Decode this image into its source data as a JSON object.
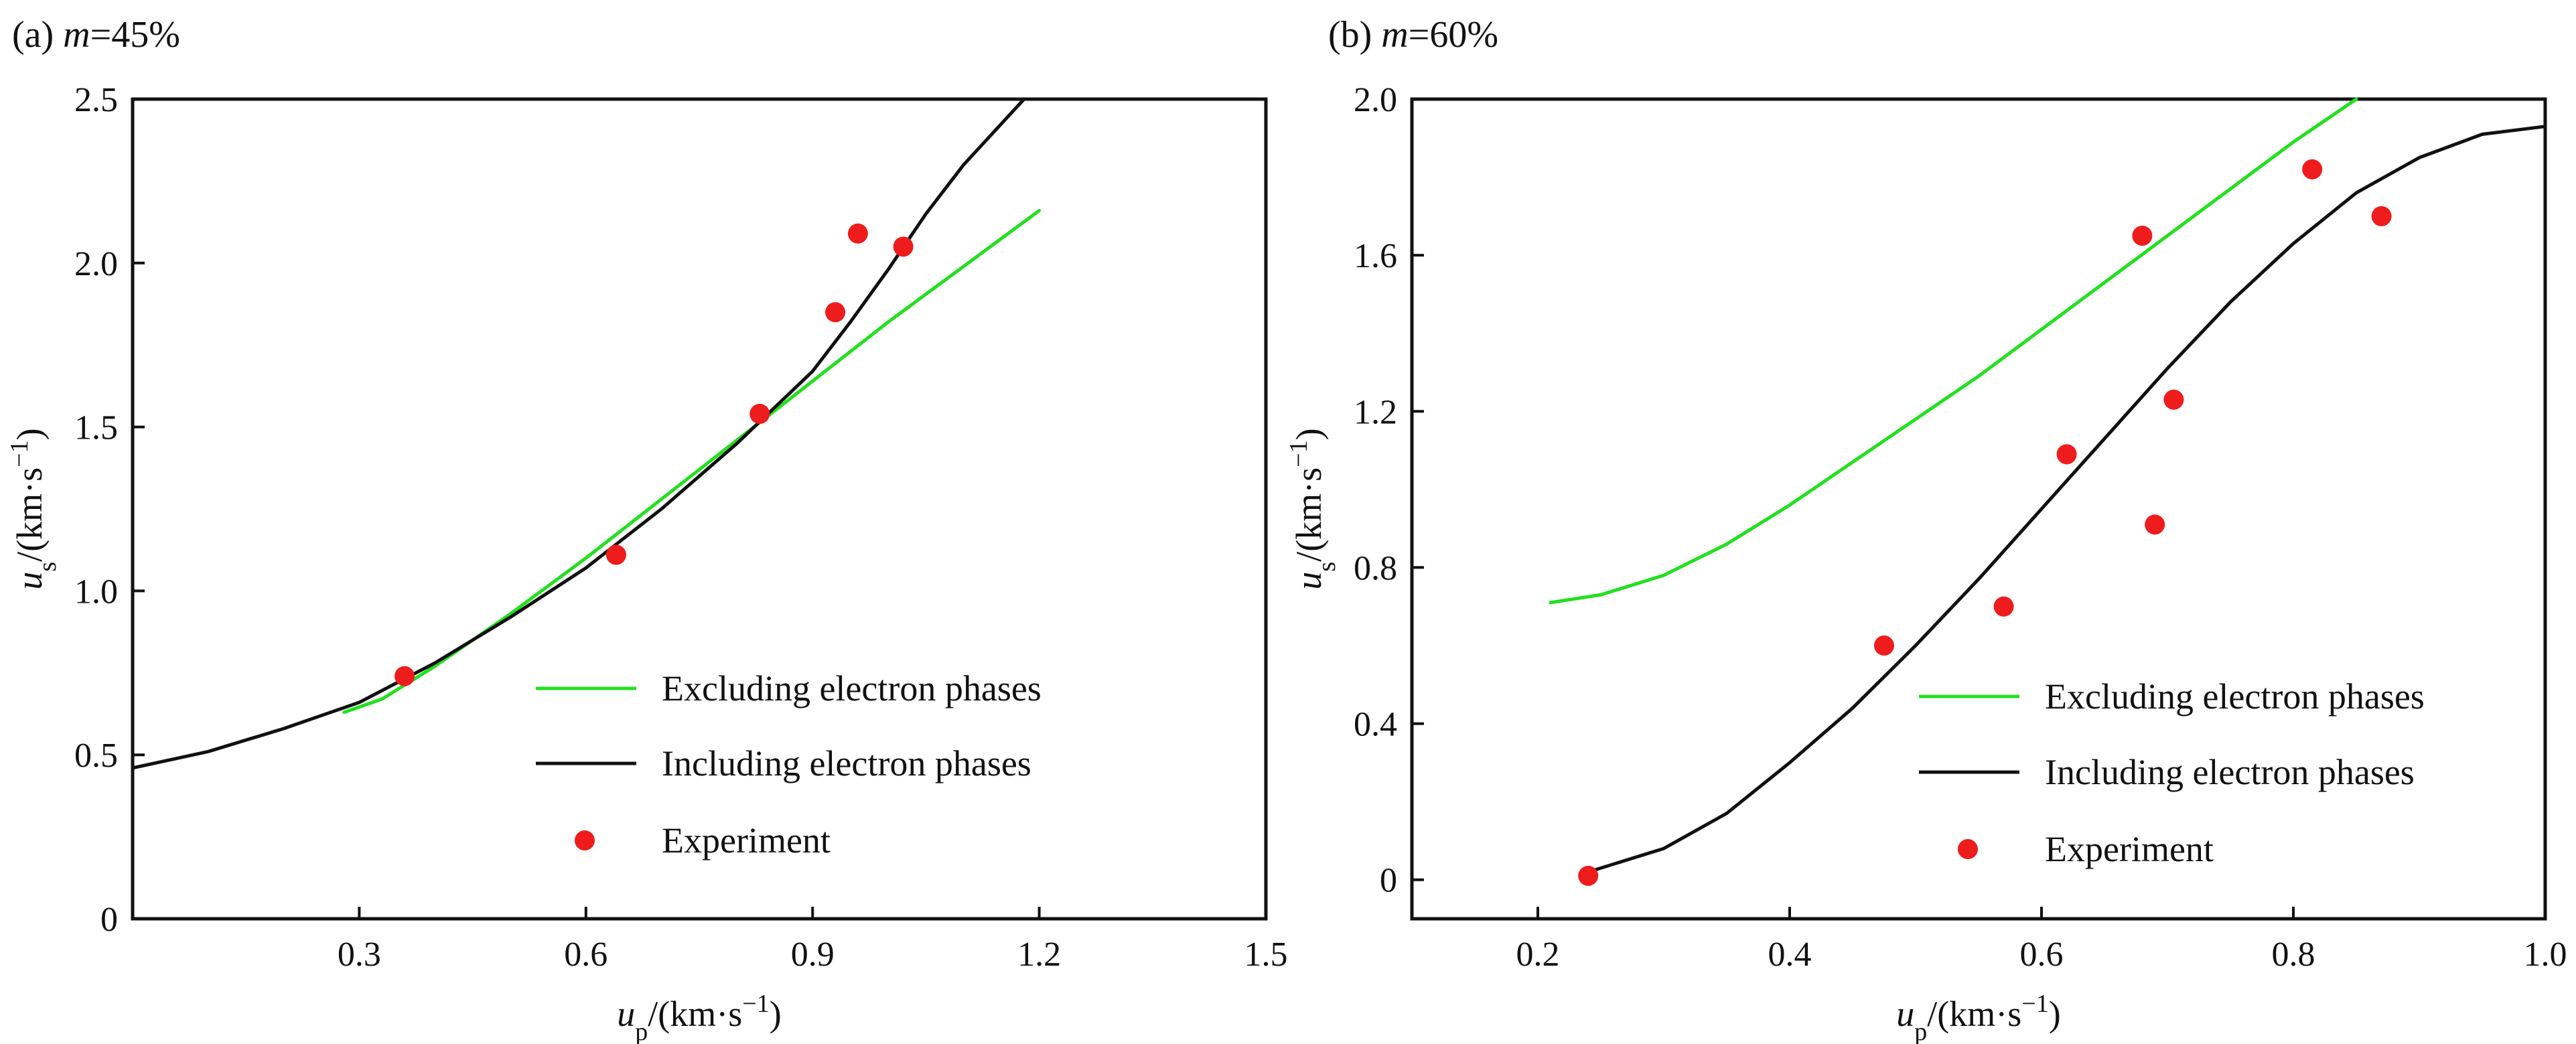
{
  "colors": {
    "excluding": "#22e01e",
    "including": "#111111",
    "experiment": "#ee1c1c"
  },
  "chart_data": [
    {
      "type": "line",
      "panel_title_prefix": "(a)",
      "panel_title_var": "m",
      "panel_title_value": "=45%",
      "xlabel_var": "u",
      "xlabel_sub": "p",
      "xlabel_unit": "/(km·s",
      "xlabel_exp": "−1",
      "xlabel_close": ")",
      "ylabel_var": "u",
      "ylabel_sub": "s",
      "ylabel_unit": "/(km·s",
      "ylabel_exp": "−1",
      "ylabel_close": ")",
      "xlim": [
        0,
        1.5
      ],
      "ylim": [
        0,
        2.5
      ],
      "x_ticks": [
        0.3,
        0.6,
        0.9,
        1.2,
        1.5
      ],
      "x_tick_labels": [
        "0.3",
        "0.6",
        "0.9",
        "1.2",
        "1.5"
      ],
      "y_ticks": [
        0,
        0.5,
        1.0,
        1.5,
        2.0,
        2.5
      ],
      "y_tick_labels": [
        "0",
        "0.5",
        "1.0",
        "1.5",
        "2.0",
        "2.5"
      ],
      "legend_position": "lower-right",
      "series": [
        {
          "name": "Excluding electron phases",
          "kind": "line",
          "color_key": "excluding",
          "x": [
            0.28,
            0.33,
            0.4,
            0.5,
            0.6,
            0.7,
            0.8,
            0.9,
            1.0,
            1.1,
            1.2
          ],
          "y": [
            0.63,
            0.67,
            0.77,
            0.93,
            1.1,
            1.28,
            1.46,
            1.64,
            1.82,
            1.99,
            2.16
          ]
        },
        {
          "name": "Including electron phases",
          "kind": "line",
          "color_key": "including",
          "x": [
            0.0,
            0.1,
            0.2,
            0.3,
            0.4,
            0.5,
            0.6,
            0.7,
            0.8,
            0.9,
            0.95,
            1.0,
            1.05,
            1.1,
            1.18
          ],
          "y": [
            0.46,
            0.51,
            0.58,
            0.66,
            0.78,
            0.92,
            1.07,
            1.25,
            1.45,
            1.67,
            1.82,
            1.98,
            2.15,
            2.3,
            2.5
          ]
        },
        {
          "name": "Experiment",
          "kind": "scatter",
          "color_key": "experiment",
          "x": [
            0.36,
            0.64,
            0.83,
            0.93,
            0.96,
            1.02
          ],
          "y": [
            0.74,
            1.11,
            1.54,
            1.85,
            2.09,
            2.05
          ]
        }
      ]
    },
    {
      "type": "line",
      "panel_title_prefix": "(b)",
      "panel_title_var": "m",
      "panel_title_value": "=60%",
      "xlabel_var": "u",
      "xlabel_sub": "p",
      "xlabel_unit": "/(km·s",
      "xlabel_exp": "−1",
      "xlabel_close": ")",
      "ylabel_var": "u",
      "ylabel_sub": "s",
      "ylabel_unit": "/(km·s",
      "ylabel_exp": "−1",
      "ylabel_close": ")",
      "xlim": [
        0.1,
        1.0
      ],
      "ylim": [
        -0.1,
        2.0
      ],
      "x_ticks": [
        0.2,
        0.4,
        0.6,
        0.8,
        1.0
      ],
      "x_tick_labels": [
        "0.2",
        "0.4",
        "0.6",
        "0.8",
        "1.0"
      ],
      "y_ticks": [
        0,
        0.4,
        0.8,
        1.2,
        1.6,
        2.0
      ],
      "y_tick_labels": [
        "0",
        "0.4",
        "0.8",
        "1.2",
        "1.6",
        "2.0"
      ],
      "legend_position": "lower-right",
      "series": [
        {
          "name": "Excluding electron phases",
          "kind": "line",
          "color_key": "excluding",
          "x": [
            0.21,
            0.25,
            0.3,
            0.35,
            0.4,
            0.45,
            0.5,
            0.55,
            0.6,
            0.65,
            0.7,
            0.75,
            0.8,
            0.85
          ],
          "y": [
            0.71,
            0.73,
            0.78,
            0.86,
            0.96,
            1.07,
            1.18,
            1.29,
            1.41,
            1.53,
            1.65,
            1.77,
            1.89,
            2.0
          ]
        },
        {
          "name": "Including electron phases",
          "kind": "line",
          "color_key": "including",
          "x": [
            0.24,
            0.3,
            0.35,
            0.4,
            0.45,
            0.5,
            0.55,
            0.6,
            0.65,
            0.7,
            0.75,
            0.8,
            0.85,
            0.9,
            0.95,
            1.0
          ],
          "y": [
            0.02,
            0.08,
            0.17,
            0.3,
            0.44,
            0.6,
            0.77,
            0.95,
            1.13,
            1.31,
            1.48,
            1.63,
            1.76,
            1.85,
            1.91,
            1.93
          ]
        },
        {
          "name": "Experiment",
          "kind": "scatter",
          "color_key": "experiment",
          "x": [
            0.24,
            0.475,
            0.57,
            0.62,
            0.69,
            0.705,
            0.68,
            0.815,
            0.87
          ],
          "y": [
            0.01,
            0.6,
            0.7,
            1.09,
            0.91,
            1.23,
            1.65,
            1.82,
            1.7
          ]
        }
      ]
    }
  ]
}
